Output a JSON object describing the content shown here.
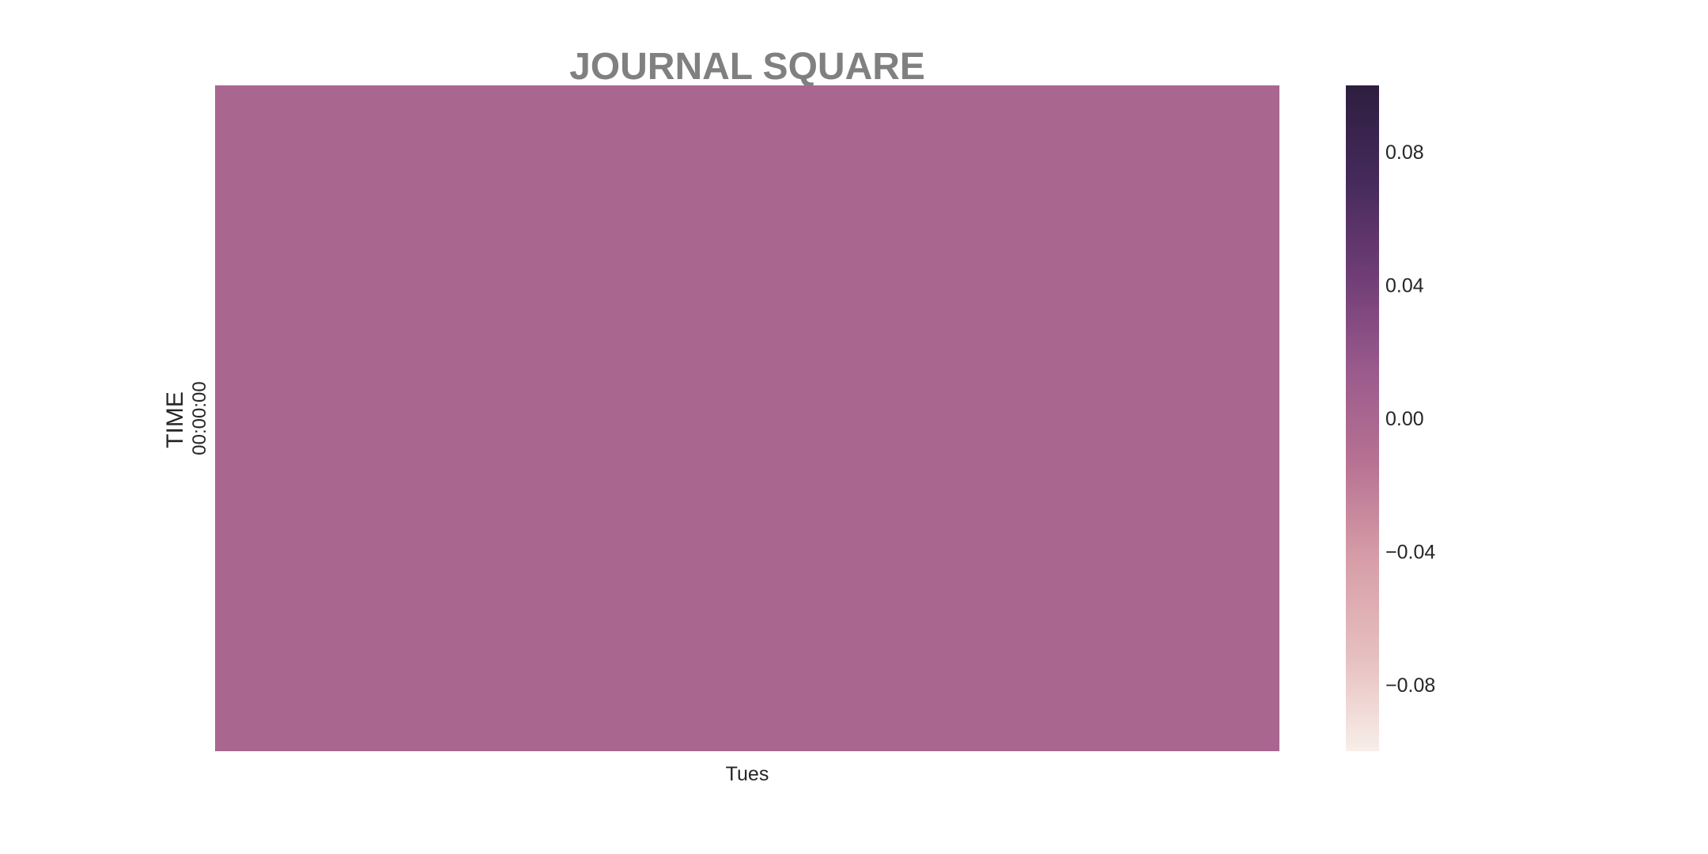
{
  "chart_data": {
    "type": "heatmap",
    "title": "JOURNAL SQUARE",
    "xlabel": "",
    "ylabel": "TIME",
    "x_categories": [
      "Tues"
    ],
    "y_categories": [
      "00:00:00"
    ],
    "values": [
      [
        0.0
      ]
    ],
    "colorbar": {
      "range": [
        -0.1,
        0.1
      ],
      "ticks": [
        0.08,
        0.04,
        0.0,
        -0.04,
        -0.08
      ],
      "tick_labels": [
        "0.08",
        "0.04",
        "0.00",
        "−0.04",
        "−0.08"
      ],
      "colors": [
        "#f8eee9",
        "#e6bfbf",
        "#d79ea8",
        "#b87393",
        "#9a5a8c",
        "#6f3d76",
        "#452a5c",
        "#2d1e3e"
      ]
    },
    "grid": false
  }
}
